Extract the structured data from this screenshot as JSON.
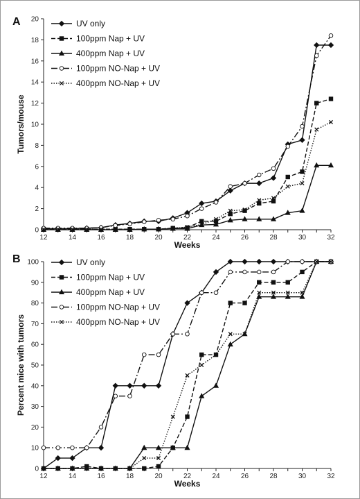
{
  "chart_data": [
    {
      "type": "line",
      "panel_label": "A",
      "xlabel": "Weeks",
      "ylabel": "Tumors/mouse",
      "xlim": [
        12,
        32
      ],
      "ylim": [
        0,
        20
      ],
      "x_ticks": [
        12,
        14,
        16,
        18,
        20,
        22,
        24,
        26,
        28,
        30,
        32
      ],
      "y_ticks": [
        0,
        2,
        4,
        6,
        8,
        10,
        12,
        14,
        16,
        18,
        20
      ],
      "x": [
        12,
        13,
        14,
        15,
        16,
        17,
        18,
        19,
        20,
        21,
        22,
        23,
        24,
        25,
        26,
        27,
        28,
        29,
        30,
        31,
        32
      ],
      "legend_position": "top-left",
      "series": [
        {
          "name": "UV only",
          "values": [
            0.1,
            0.1,
            0.1,
            0.15,
            0.2,
            0.45,
            0.6,
            0.8,
            0.8,
            1.1,
            1.6,
            2.5,
            2.7,
            3.7,
            4.4,
            4.4,
            4.9,
            8.1,
            8.5,
            17.5,
            17.5
          ]
        },
        {
          "name": "100ppm Nap + UV",
          "values": [
            0.05,
            0.05,
            0.05,
            0.05,
            0.05,
            0.05,
            0.05,
            0.05,
            0.05,
            0.15,
            0.2,
            0.8,
            0.8,
            1.5,
            1.8,
            2.5,
            2.7,
            5.0,
            5.5,
            12.0,
            12.4
          ]
        },
        {
          "name": "400ppm Nap + UV",
          "values": [
            0,
            0,
            0,
            0,
            0,
            0,
            0,
            0.05,
            0.05,
            0.1,
            0.1,
            0.45,
            0.5,
            0.9,
            1.0,
            1.0,
            1.0,
            1.6,
            1.8,
            6.1,
            6.1
          ]
        },
        {
          "name": "100ppm NO-Nap + UV",
          "values": [
            0.15,
            0.15,
            0.15,
            0.15,
            0.2,
            0.4,
            0.55,
            0.75,
            0.9,
            1.0,
            1.3,
            2.0,
            2.6,
            4.1,
            4.4,
            5.2,
            5.8,
            7.9,
            9.8,
            16.5,
            18.4
          ]
        },
        {
          "name": "400ppm NO-Nap + UV",
          "values": [
            0.05,
            0.05,
            0.05,
            0.05,
            0.05,
            0.05,
            0.05,
            0.05,
            0.05,
            0.15,
            0.25,
            0.5,
            1.0,
            1.8,
            1.9,
            2.8,
            3.0,
            4.1,
            4.4,
            9.5,
            10.2
          ]
        }
      ]
    },
    {
      "type": "line",
      "panel_label": "B",
      "xlabel": "Weeks",
      "ylabel": "Percent mice with tumors",
      "xlim": [
        12,
        32
      ],
      "ylim": [
        0,
        100
      ],
      "x_ticks": [
        12,
        14,
        16,
        18,
        20,
        22,
        24,
        26,
        28,
        30,
        32
      ],
      "y_ticks": [
        0,
        10,
        20,
        30,
        40,
        50,
        60,
        70,
        80,
        90,
        100
      ],
      "x": [
        12,
        13,
        14,
        15,
        16,
        17,
        18,
        19,
        20,
        21,
        22,
        23,
        24,
        25,
        26,
        27,
        28,
        29,
        30,
        31,
        32
      ],
      "legend_position": "top-left",
      "series": [
        {
          "name": "UV only",
          "values": [
            0,
            5,
            5,
            10,
            10,
            40,
            40,
            40,
            40,
            65,
            80,
            85,
            95,
            100,
            100,
            100,
            100,
            100,
            100,
            100,
            100
          ]
        },
        {
          "name": "100ppm Nap + UV",
          "values": [
            0,
            0,
            0,
            1,
            0,
            0,
            0,
            0,
            1,
            10,
            25,
            55,
            55,
            80,
            80,
            90,
            90,
            90,
            95,
            100,
            100
          ]
        },
        {
          "name": "400ppm Nap + UV",
          "values": [
            0,
            0,
            0,
            0,
            0,
            0,
            0,
            10,
            10,
            10,
            10,
            35,
            40,
            60,
            65,
            83,
            83,
            83,
            83,
            100,
            100
          ]
        },
        {
          "name": "100ppm NO-Nap + UV",
          "values": [
            10,
            10,
            10,
            10,
            20,
            35,
            35,
            55,
            55,
            65,
            65,
            85,
            85,
            95,
            95,
            95,
            95,
            100,
            100,
            100,
            100
          ]
        },
        {
          "name": "400ppm NO-Nap + UV",
          "values": [
            0,
            0,
            0,
            0,
            0,
            0,
            0,
            5,
            5,
            25,
            45,
            50,
            55,
            65,
            65,
            85,
            85,
            85,
            85,
            100,
            100
          ]
        }
      ]
    }
  ]
}
